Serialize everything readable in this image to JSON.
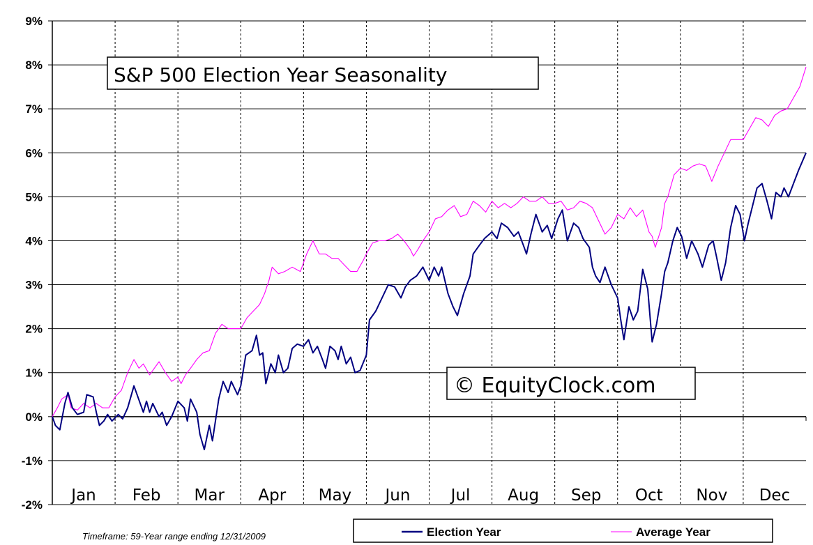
{
  "footer": {
    "timeframe": "Timeframe: 59-Year range ending 12/31/2009"
  },
  "watermark": "© EquityClock.com",
  "chart_data": {
    "type": "line",
    "title": "S&P 500 Election Year Seasonality",
    "xlabel": "",
    "ylabel": "",
    "ylim": [
      -2,
      9
    ],
    "yticks": [
      "-2%",
      "-1%",
      "0%",
      "1%",
      "2%",
      "3%",
      "4%",
      "5%",
      "6%",
      "7%",
      "8%",
      "9%"
    ],
    "categories": [
      "Jan",
      "Feb",
      "Mar",
      "Apr",
      "May",
      "Jun",
      "Jul",
      "Aug",
      "Sep",
      "Oct",
      "Nov",
      "Dec"
    ],
    "x_unit": "month (0 = Jan 1, 12 = Dec 31)",
    "grid": true,
    "legend": "bottom",
    "series": [
      {
        "name": "Election Year",
        "color": "#000080",
        "points": [
          [
            0,
            0
          ],
          [
            0.05,
            -0.2
          ],
          [
            0.12,
            -0.3
          ],
          [
            0.2,
            0.3
          ],
          [
            0.25,
            0.55
          ],
          [
            0.32,
            0.2
          ],
          [
            0.4,
            0.05
          ],
          [
            0.5,
            0.1
          ],
          [
            0.55,
            0.5
          ],
          [
            0.65,
            0.45
          ],
          [
            0.7,
            0.1
          ],
          [
            0.75,
            -0.2
          ],
          [
            0.82,
            -0.1
          ],
          [
            0.88,
            0.05
          ],
          [
            0.95,
            -0.1
          ],
          [
            1.05,
            0.05
          ],
          [
            1.12,
            -0.05
          ],
          [
            1.2,
            0.2
          ],
          [
            1.3,
            0.7
          ],
          [
            1.4,
            0.3
          ],
          [
            1.45,
            0.1
          ],
          [
            1.5,
            0.35
          ],
          [
            1.55,
            0.1
          ],
          [
            1.6,
            0.3
          ],
          [
            1.7,
            0.0
          ],
          [
            1.75,
            0.1
          ],
          [
            1.82,
            -0.2
          ],
          [
            1.9,
            0.0
          ],
          [
            2.0,
            0.35
          ],
          [
            2.1,
            0.2
          ],
          [
            2.15,
            -0.1
          ],
          [
            2.2,
            0.4
          ],
          [
            2.3,
            0.1
          ],
          [
            2.35,
            -0.4
          ],
          [
            2.42,
            -0.75
          ],
          [
            2.5,
            -0.2
          ],
          [
            2.55,
            -0.55
          ],
          [
            2.65,
            0.4
          ],
          [
            2.72,
            0.8
          ],
          [
            2.8,
            0.55
          ],
          [
            2.85,
            0.8
          ],
          [
            2.95,
            0.5
          ],
          [
            3.0,
            0.7
          ],
          [
            3.08,
            1.4
          ],
          [
            3.18,
            1.5
          ],
          [
            3.25,
            1.85
          ],
          [
            3.3,
            1.4
          ],
          [
            3.35,
            1.45
          ],
          [
            3.4,
            0.75
          ],
          [
            3.48,
            1.2
          ],
          [
            3.55,
            1.0
          ],
          [
            3.6,
            1.4
          ],
          [
            3.68,
            1.0
          ],
          [
            3.75,
            1.1
          ],
          [
            3.82,
            1.55
          ],
          [
            3.9,
            1.65
          ],
          [
            4.0,
            1.6
          ],
          [
            4.08,
            1.75
          ],
          [
            4.15,
            1.45
          ],
          [
            4.22,
            1.6
          ],
          [
            4.3,
            1.3
          ],
          [
            4.35,
            1.1
          ],
          [
            4.42,
            1.6
          ],
          [
            4.5,
            1.5
          ],
          [
            4.55,
            1.3
          ],
          [
            4.6,
            1.6
          ],
          [
            4.68,
            1.2
          ],
          [
            4.75,
            1.35
          ],
          [
            4.82,
            1.0
          ],
          [
            4.9,
            1.05
          ],
          [
            5.0,
            1.4
          ],
          [
            5.05,
            2.2
          ],
          [
            5.15,
            2.4
          ],
          [
            5.25,
            2.7
          ],
          [
            5.35,
            3.0
          ],
          [
            5.45,
            2.95
          ],
          [
            5.55,
            2.7
          ],
          [
            5.62,
            2.95
          ],
          [
            5.7,
            3.1
          ],
          [
            5.8,
            3.2
          ],
          [
            5.9,
            3.4
          ],
          [
            6.0,
            3.1
          ],
          [
            6.08,
            3.4
          ],
          [
            6.15,
            3.2
          ],
          [
            6.2,
            3.4
          ],
          [
            6.3,
            2.8
          ],
          [
            6.38,
            2.5
          ],
          [
            6.45,
            2.3
          ],
          [
            6.55,
            2.8
          ],
          [
            6.65,
            3.2
          ],
          [
            6.7,
            3.7
          ],
          [
            6.8,
            3.9
          ],
          [
            6.88,
            4.05
          ],
          [
            7.0,
            4.2
          ],
          [
            7.08,
            4.05
          ],
          [
            7.15,
            4.4
          ],
          [
            7.25,
            4.3
          ],
          [
            7.35,
            4.1
          ],
          [
            7.42,
            4.2
          ],
          [
            7.5,
            3.9
          ],
          [
            7.55,
            3.7
          ],
          [
            7.62,
            4.15
          ],
          [
            7.7,
            4.6
          ],
          [
            7.8,
            4.2
          ],
          [
            7.88,
            4.35
          ],
          [
            7.95,
            4.05
          ],
          [
            8.05,
            4.5
          ],
          [
            8.12,
            4.7
          ],
          [
            8.2,
            4.0
          ],
          [
            8.3,
            4.4
          ],
          [
            8.38,
            4.3
          ],
          [
            8.45,
            4.05
          ],
          [
            8.55,
            3.85
          ],
          [
            8.6,
            3.4
          ],
          [
            8.65,
            3.2
          ],
          [
            8.72,
            3.05
          ],
          [
            8.8,
            3.4
          ],
          [
            8.9,
            3.0
          ],
          [
            9.0,
            2.7
          ],
          [
            9.05,
            2.2
          ],
          [
            9.1,
            1.75
          ],
          [
            9.18,
            2.5
          ],
          [
            9.25,
            2.2
          ],
          [
            9.32,
            2.4
          ],
          [
            9.4,
            3.35
          ],
          [
            9.48,
            2.9
          ],
          [
            9.55,
            1.7
          ],
          [
            9.62,
            2.1
          ],
          [
            9.7,
            2.8
          ],
          [
            9.75,
            3.3
          ],
          [
            9.8,
            3.5
          ],
          [
            9.88,
            4.0
          ],
          [
            9.95,
            4.3
          ],
          [
            10.02,
            4.1
          ],
          [
            10.1,
            3.6
          ],
          [
            10.18,
            4.0
          ],
          [
            10.28,
            3.7
          ],
          [
            10.35,
            3.4
          ],
          [
            10.45,
            3.9
          ],
          [
            10.52,
            4.0
          ],
          [
            10.58,
            3.6
          ],
          [
            10.65,
            3.1
          ],
          [
            10.72,
            3.5
          ],
          [
            10.8,
            4.3
          ],
          [
            10.88,
            4.8
          ],
          [
            10.95,
            4.6
          ],
          [
            11.02,
            4.0
          ],
          [
            11.08,
            4.4
          ],
          [
            11.15,
            4.8
          ],
          [
            11.22,
            5.2
          ],
          [
            11.3,
            5.3
          ],
          [
            11.38,
            4.9
          ],
          [
            11.45,
            4.5
          ],
          [
            11.52,
            5.1
          ],
          [
            11.6,
            5.0
          ],
          [
            11.65,
            5.2
          ],
          [
            11.72,
            5.0
          ],
          [
            11.8,
            5.3
          ],
          [
            11.88,
            5.6
          ],
          [
            12.0,
            6.0
          ]
        ]
      },
      {
        "name": "Average Year",
        "color": "#FF00FF",
        "points": [
          [
            0,
            0
          ],
          [
            0.08,
            0.2
          ],
          [
            0.15,
            0.4
          ],
          [
            0.25,
            0.5
          ],
          [
            0.3,
            0.2
          ],
          [
            0.4,
            0.15
          ],
          [
            0.5,
            0.3
          ],
          [
            0.6,
            0.2
          ],
          [
            0.7,
            0.3
          ],
          [
            0.8,
            0.2
          ],
          [
            0.9,
            0.2
          ],
          [
            1.0,
            0.45
          ],
          [
            1.1,
            0.6
          ],
          [
            1.2,
            1.0
          ],
          [
            1.3,
            1.3
          ],
          [
            1.38,
            1.1
          ],
          [
            1.45,
            1.2
          ],
          [
            1.55,
            0.95
          ],
          [
            1.6,
            1.05
          ],
          [
            1.7,
            1.25
          ],
          [
            1.8,
            1.0
          ],
          [
            1.9,
            0.8
          ],
          [
            2.0,
            0.9
          ],
          [
            2.05,
            0.75
          ],
          [
            2.12,
            0.95
          ],
          [
            2.2,
            1.1
          ],
          [
            2.3,
            1.3
          ],
          [
            2.4,
            1.45
          ],
          [
            2.5,
            1.5
          ],
          [
            2.6,
            1.9
          ],
          [
            2.7,
            2.1
          ],
          [
            2.8,
            2.0
          ],
          [
            2.9,
            2.0
          ],
          [
            3.0,
            2.0
          ],
          [
            3.1,
            2.25
          ],
          [
            3.2,
            2.4
          ],
          [
            3.3,
            2.55
          ],
          [
            3.38,
            2.8
          ],
          [
            3.45,
            3.1
          ],
          [
            3.5,
            3.4
          ],
          [
            3.6,
            3.25
          ],
          [
            3.7,
            3.3
          ],
          [
            3.82,
            3.4
          ],
          [
            3.95,
            3.3
          ],
          [
            4.05,
            3.7
          ],
          [
            4.15,
            4.0
          ],
          [
            4.25,
            3.7
          ],
          [
            4.35,
            3.7
          ],
          [
            4.45,
            3.6
          ],
          [
            4.55,
            3.6
          ],
          [
            4.65,
            3.45
          ],
          [
            4.75,
            3.3
          ],
          [
            4.85,
            3.3
          ],
          [
            4.95,
            3.55
          ],
          [
            5.0,
            3.7
          ],
          [
            5.1,
            3.95
          ],
          [
            5.2,
            4.0
          ],
          [
            5.3,
            4.0
          ],
          [
            5.4,
            4.05
          ],
          [
            5.5,
            4.15
          ],
          [
            5.6,
            4.0
          ],
          [
            5.7,
            3.8
          ],
          [
            5.75,
            3.65
          ],
          [
            5.82,
            3.8
          ],
          [
            5.9,
            4.0
          ],
          [
            6.0,
            4.2
          ],
          [
            6.1,
            4.5
          ],
          [
            6.2,
            4.55
          ],
          [
            6.3,
            4.7
          ],
          [
            6.4,
            4.8
          ],
          [
            6.5,
            4.55
          ],
          [
            6.6,
            4.6
          ],
          [
            6.7,
            4.9
          ],
          [
            6.8,
            4.8
          ],
          [
            6.9,
            4.65
          ],
          [
            7.0,
            4.9
          ],
          [
            7.1,
            4.75
          ],
          [
            7.2,
            4.85
          ],
          [
            7.3,
            4.75
          ],
          [
            7.4,
            4.85
          ],
          [
            7.5,
            5.0
          ],
          [
            7.6,
            4.9
          ],
          [
            7.7,
            4.9
          ],
          [
            7.8,
            5.0
          ],
          [
            7.9,
            4.85
          ],
          [
            8.0,
            4.85
          ],
          [
            8.1,
            4.9
          ],
          [
            8.2,
            4.7
          ],
          [
            8.3,
            4.75
          ],
          [
            8.4,
            4.9
          ],
          [
            8.5,
            4.85
          ],
          [
            8.6,
            4.75
          ],
          [
            8.7,
            4.45
          ],
          [
            8.8,
            4.15
          ],
          [
            8.9,
            4.3
          ],
          [
            9.0,
            4.6
          ],
          [
            9.1,
            4.5
          ],
          [
            9.2,
            4.75
          ],
          [
            9.3,
            4.55
          ],
          [
            9.4,
            4.7
          ],
          [
            9.5,
            4.2
          ],
          [
            9.55,
            4.1
          ],
          [
            9.6,
            3.85
          ],
          [
            9.7,
            4.3
          ],
          [
            9.75,
            4.85
          ],
          [
            9.8,
            5.0
          ],
          [
            9.9,
            5.5
          ],
          [
            10.0,
            5.65
          ],
          [
            10.1,
            5.6
          ],
          [
            10.2,
            5.7
          ],
          [
            10.3,
            5.75
          ],
          [
            10.4,
            5.7
          ],
          [
            10.5,
            5.35
          ],
          [
            10.6,
            5.7
          ],
          [
            10.7,
            6.0
          ],
          [
            10.8,
            6.3
          ],
          [
            10.9,
            6.3
          ],
          [
            11.0,
            6.3
          ],
          [
            11.1,
            6.55
          ],
          [
            11.2,
            6.8
          ],
          [
            11.3,
            6.75
          ],
          [
            11.4,
            6.6
          ],
          [
            11.5,
            6.85
          ],
          [
            11.6,
            6.95
          ],
          [
            11.7,
            7.0
          ],
          [
            11.8,
            7.25
          ],
          [
            11.9,
            7.5
          ],
          [
            12.0,
            7.95
          ]
        ]
      }
    ]
  }
}
